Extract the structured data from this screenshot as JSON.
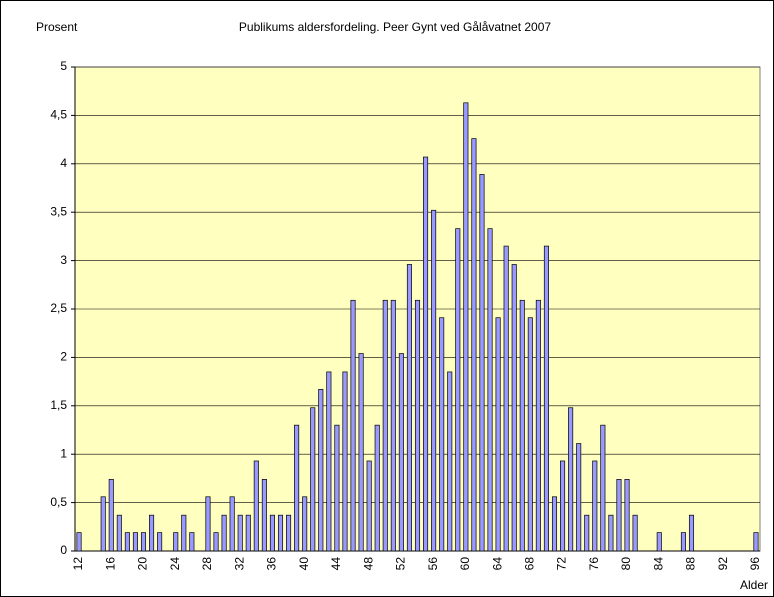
{
  "chart_data": {
    "type": "bar",
    "title": "Publikums aldersfordeling. Peer Gynt ved Gålåvatnet 2007",
    "y_label": "Prosent",
    "x_label": "Alder",
    "categories": [
      "12",
      null,
      null,
      null,
      "16",
      null,
      null,
      null,
      "20",
      null,
      null,
      null,
      "24",
      null,
      null,
      null,
      "28",
      null,
      null,
      null,
      "32",
      null,
      null,
      null,
      "36",
      null,
      null,
      null,
      "40",
      null,
      null,
      null,
      "44",
      null,
      null,
      null,
      "48",
      null,
      null,
      null,
      "52",
      null,
      null,
      null,
      "56",
      null,
      null,
      null,
      "60",
      null,
      null,
      null,
      "64",
      null,
      null,
      null,
      "68",
      null,
      null,
      null,
      "72",
      null,
      null,
      null,
      "76",
      null,
      null,
      null,
      "80",
      null,
      null,
      null,
      "84",
      null,
      null,
      null,
      "88",
      null,
      null,
      null,
      "92",
      null,
      null,
      null,
      "96"
    ],
    "values": [
      0.19,
      0,
      0,
      0.56,
      0.74,
      0.37,
      0.19,
      0.19,
      0.19,
      0.37,
      0.19,
      0,
      0.19,
      0.37,
      0.19,
      0,
      0.56,
      0.19,
      0.37,
      0.56,
      0.37,
      0.37,
      0.93,
      0.74,
      0.37,
      0.37,
      0.37,
      1.3,
      0.56,
      1.48,
      1.67,
      1.85,
      1.3,
      1.85,
      2.59,
      2.04,
      0.93,
      1.3,
      2.59,
      2.59,
      2.04,
      2.96,
      2.59,
      4.07,
      3.52,
      2.41,
      1.85,
      3.33,
      4.63,
      4.26,
      3.89,
      3.33,
      2.41,
      3.15,
      2.96,
      2.59,
      2.41,
      2.59,
      3.15,
      0.56,
      0.93,
      1.48,
      1.11,
      0.37,
      0.93,
      1.3,
      0.37,
      0.74,
      0.74,
      0.37,
      0,
      0,
      0.19,
      0,
      0,
      0.19,
      0.37,
      0,
      0,
      0,
      0,
      0,
      0,
      0,
      0.19
    ],
    "color": "#9999ff",
    "ylim": [
      0,
      5
    ],
    "yticks": [
      0,
      {
        "value": 0.5,
        "label": "0,5"
      },
      1,
      {
        "value": 1.5,
        "label": "1,5"
      },
      2,
      {
        "value": 2.5,
        "label": "2,5"
      },
      3,
      {
        "value": 3.5,
        "label": "3,5"
      },
      4,
      {
        "value": 4.5,
        "label": "4,5"
      },
      5
    ],
    "grid": true
  }
}
